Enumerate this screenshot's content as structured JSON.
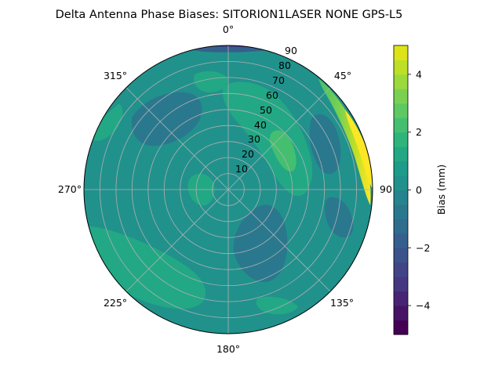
{
  "chart_data": {
    "type": "polar-contour",
    "title": "Delta Antenna Phase Biases: SITORION1LASER  NONE GPS-L5",
    "theta_ticks": [
      "0°",
      "45°",
      "90",
      "135°",
      "180°",
      "225°",
      "270°",
      "315°"
    ],
    "radial_ticks": [
      "10",
      "20",
      "30",
      "40",
      "50",
      "60",
      "70",
      "80",
      "90"
    ],
    "radial_range": [
      0,
      90
    ],
    "theta_zero": "top",
    "theta_direction": "clockwise",
    "grid": true,
    "colorbar": {
      "label": "Bias (mm)",
      "range": [
        -5,
        5
      ],
      "ticks": [
        "4",
        "2",
        "0",
        "−2",
        "−4"
      ],
      "tick_values": [
        4,
        2,
        0,
        -2,
        -4
      ],
      "levels": [
        -5,
        -4.5,
        -4,
        -3.5,
        -3,
        -2.5,
        -2,
        -1.5,
        -1,
        -0.5,
        0,
        0.5,
        1,
        1.5,
        2,
        2.5,
        3,
        3.5,
        4,
        4.5,
        5
      ],
      "colormap": "viridis",
      "band_colors": [
        "#440154",
        "#482475",
        "#414487",
        "#355f8d",
        "#2a788e",
        "#21918c",
        "#22a884",
        "#44bf70",
        "#7ad151",
        "#bddf26",
        "#fde725"
      ]
    },
    "regions": [
      {
        "id": "base",
        "level": "0 to 1",
        "color": "#21918c"
      },
      {
        "id": "lower-left-high",
        "level": "1 to 2",
        "color": "#22a884",
        "center": [
          230,
          65
        ]
      },
      {
        "id": "upper-center-high",
        "level": "1 to 2",
        "color": "#22a884",
        "center": [
          20,
          50
        ]
      },
      {
        "id": "upper-right-peak",
        "level": "2 to 3",
        "color": "#44bf70",
        "center": [
          25,
          38
        ]
      },
      {
        "id": "zenith-high",
        "level": "1 to 2",
        "color": "#22a884",
        "center": [
          270,
          15
        ]
      },
      {
        "id": "east-rim-peak",
        "level": "4 to 5",
        "color": "#fde725",
        "center": [
          68,
          88
        ]
      },
      {
        "id": "upper-left-low",
        "level": "-1 to -2",
        "color": "#2a788e",
        "center": [
          315,
          55
        ]
      },
      {
        "id": "lower-center-low",
        "level": "-1 to -2",
        "color": "#2a788e",
        "center": [
          160,
          40
        ]
      },
      {
        "id": "north-rim-low",
        "level": "-2 to -3",
        "color": "#355f8d",
        "center": [
          5,
          88
        ]
      },
      {
        "id": "east-low",
        "level": "-1 to -2",
        "color": "#2a788e",
        "center": [
          70,
          70
        ]
      }
    ]
  }
}
